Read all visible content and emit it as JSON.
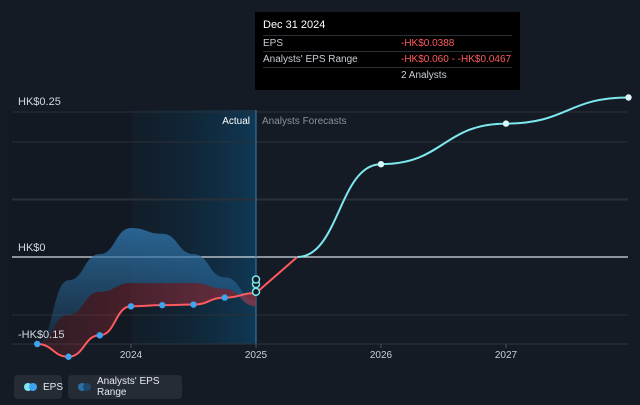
{
  "chart_data": {
    "type": "line",
    "y_axis_labels": [
      "HK$0.25",
      "HK$0",
      "-HK$0.15"
    ],
    "ylim": [
      -0.2,
      0.25
    ],
    "x_ticks": [
      "2024",
      "2025",
      "2026",
      "2027"
    ],
    "region_labels": {
      "actual": "Actual",
      "forecast": "Analysts Forecasts"
    },
    "series": [
      {
        "name": "EPS",
        "color": "#ff5a5f",
        "points": [
          {
            "x": 2023.25,
            "y": -0.15
          },
          {
            "x": 2023.5,
            "y": -0.172
          },
          {
            "x": 2023.75,
            "y": -0.135
          },
          {
            "x": 2024.0,
            "y": -0.085
          },
          {
            "x": 2024.25,
            "y": -0.083
          },
          {
            "x": 2024.5,
            "y": -0.082
          },
          {
            "x": 2024.75,
            "y": -0.07
          },
          {
            "x": 2025.0,
            "y": -0.062
          }
        ]
      },
      {
        "name": "EPS Forecast",
        "color": "#7ee8ef",
        "points": [
          {
            "x": 2025.0,
            "y": -0.0388
          },
          {
            "x": 2025.33,
            "y": 0.0
          },
          {
            "x": 2026.0,
            "y": 0.16
          },
          {
            "x": 2027.0,
            "y": 0.23
          },
          {
            "x": 2027.98,
            "y": 0.275
          }
        ]
      }
    ],
    "analysts_range": {
      "upper": [
        {
          "x": 2023.25,
          "y": -0.15
        },
        {
          "x": 2023.5,
          "y": -0.04
        },
        {
          "x": 2023.75,
          "y": 0.005
        },
        {
          "x": 2024.0,
          "y": 0.05
        },
        {
          "x": 2024.25,
          "y": 0.04
        },
        {
          "x": 2024.5,
          "y": 0.005
        },
        {
          "x": 2024.75,
          "y": -0.035
        },
        {
          "x": 2025.0,
          "y": -0.075
        }
      ],
      "lower": [
        {
          "x": 2023.25,
          "y": -0.15
        },
        {
          "x": 2023.5,
          "y": -0.1
        },
        {
          "x": 2023.75,
          "y": -0.06
        },
        {
          "x": 2024.0,
          "y": -0.045
        },
        {
          "x": 2024.25,
          "y": -0.045
        },
        {
          "x": 2024.5,
          "y": -0.045
        },
        {
          "x": 2024.75,
          "y": -0.055
        },
        {
          "x": 2025.0,
          "y": -0.085
        }
      ],
      "endpoint_markers": [
        -0.0467,
        -0.0388,
        -0.06
      ]
    },
    "colors": {
      "background": "#151b24",
      "highlight_band": "#0e3048",
      "zero_line": "#d8dce2",
      "grid": "#2a3038",
      "eps_dot": "#3ea4f0",
      "range_blue": "#2d6fa3",
      "range_red": "#8c2b33"
    },
    "grid": true,
    "legend_placement": "bottom-left"
  },
  "tooltip": {
    "title": "Dec 31 2024",
    "rows": [
      {
        "label": "EPS",
        "value": "-HK$0.0388"
      },
      {
        "label": "Analysts' EPS Range",
        "value": "-HK$0.060 - -HK$0.0467"
      },
      {
        "label": "",
        "value": "2 Analysts"
      }
    ]
  },
  "legend": {
    "items": [
      {
        "label": "EPS",
        "dot_colors": [
          "#7ee8ef",
          "#3ea4f0"
        ]
      },
      {
        "label": "Analysts' EPS Range",
        "dot_colors": [
          "#2d6fa3",
          "#1f4a6e"
        ]
      }
    ]
  }
}
